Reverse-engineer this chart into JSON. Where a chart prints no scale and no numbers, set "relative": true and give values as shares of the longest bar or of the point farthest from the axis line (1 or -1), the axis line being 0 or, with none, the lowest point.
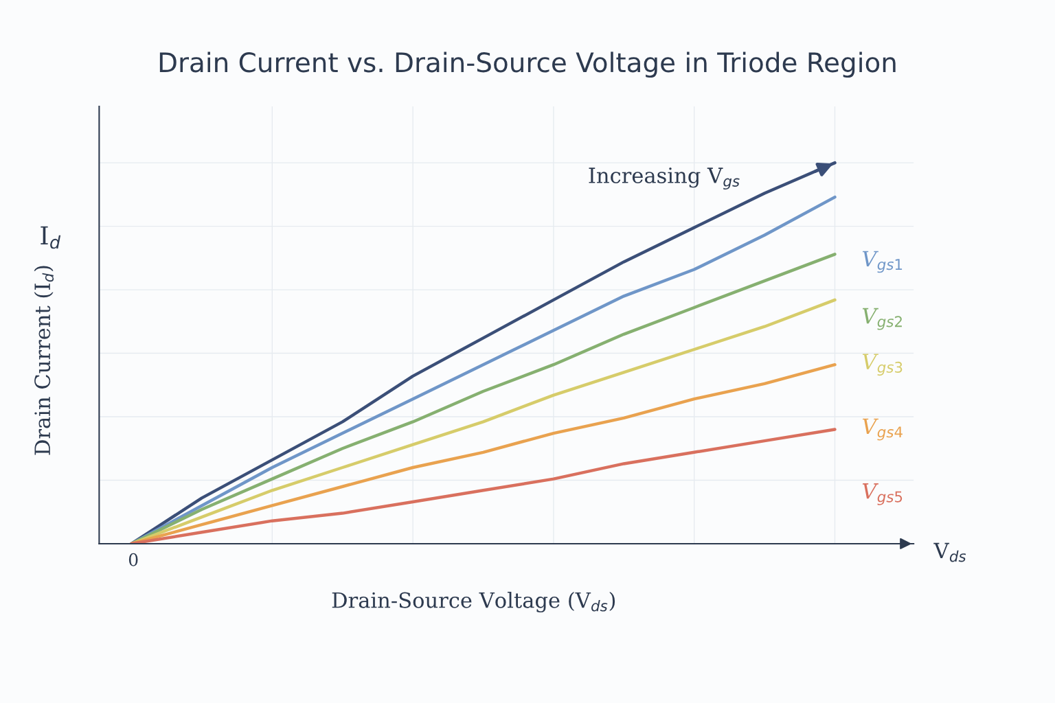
{
  "chart_data": {
    "type": "line",
    "title": "Drain Current vs. Drain-Source Voltage in Triode Region",
    "xlabel": "Drain-Source Voltage (V$_{ds}$)",
    "ylabel": "Drain Current (I$_{d}$)",
    "relative": true,
    "grid": true,
    "legend": false,
    "marker": "none",
    "line_style": "solid",
    "categories": [
      null,
      null,
      null,
      null,
      null,
      null,
      null,
      null,
      null,
      null,
      null
    ],
    "annotations": [
      "Increasing V$_{gs}$",
      "I$_{d}$",
      "V$_{ds}$",
      "0"
    ],
    "series": [
      {
        "color": "#3b4f78",
        "values": [
          0,
          0.12,
          0.22,
          0.32,
          0.44,
          0.54,
          0.64,
          0.74,
          0.83,
          0.92,
          1
        ]
      },
      {
        "name": "V$_{gs1}$",
        "color": "#6f96c8",
        "values": [
          0,
          0.1,
          0.2,
          0.29,
          0.38,
          0.47,
          0.56,
          0.65,
          0.72,
          0.81,
          0.91
        ]
      },
      {
        "name": "V$_{gs2}$",
        "color": "#86b070",
        "values": [
          0,
          0.09,
          0.17,
          0.25,
          0.32,
          0.4,
          0.47,
          0.55,
          0.62,
          0.69,
          0.76
        ]
      },
      {
        "name": "V$_{gs3}$",
        "color": "#d6cc6a",
        "values": [
          0,
          0.07,
          0.14,
          0.2,
          0.26,
          0.32,
          0.39,
          0.45,
          0.51,
          0.57,
          0.64
        ]
      },
      {
        "name": "V$_{gs4}$",
        "color": "#e9a24f",
        "values": [
          0,
          0.05,
          0.1,
          0.15,
          0.2,
          0.24,
          0.29,
          0.33,
          0.38,
          0.42,
          0.47
        ]
      },
      {
        "name": "V$_{gs5}$",
        "color": "#d9705e",
        "values": [
          0,
          0.03,
          0.06,
          0.08,
          0.11,
          0.14,
          0.17,
          0.21,
          0.24,
          0.27,
          0.3
        ]
      }
    ]
  }
}
